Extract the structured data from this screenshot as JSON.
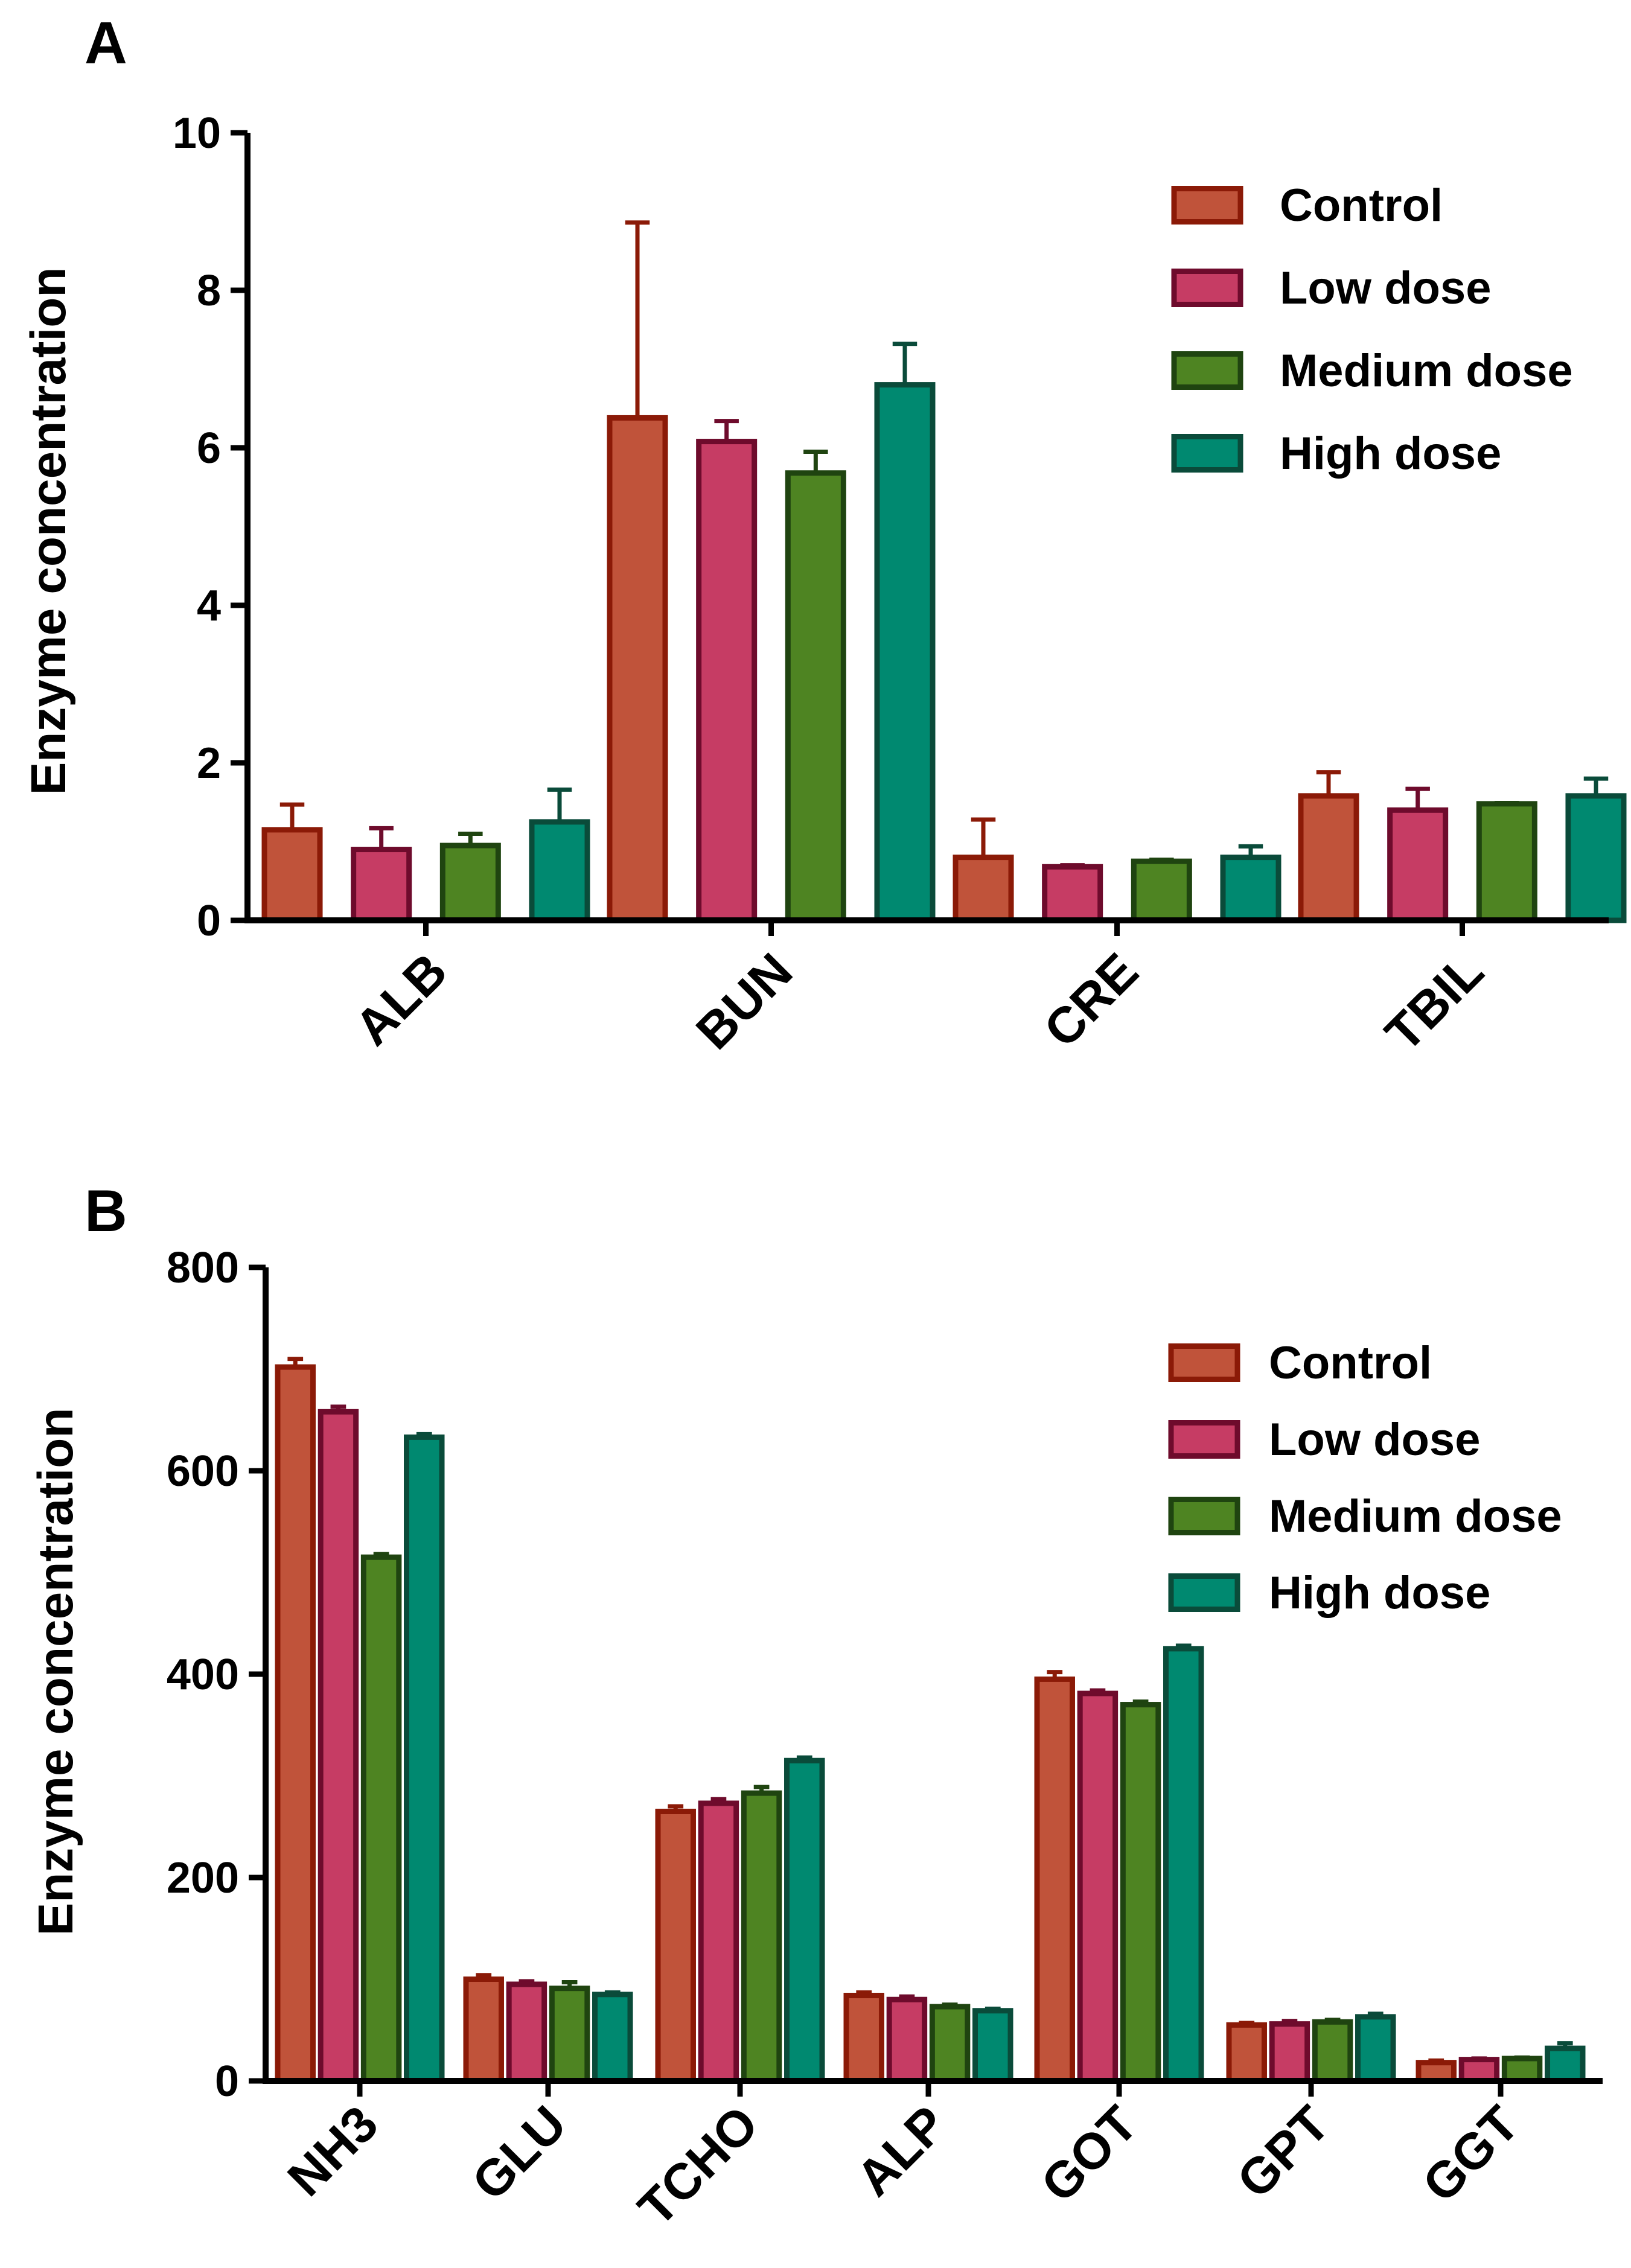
{
  "series_styles": [
    {
      "fill": "#C0533A",
      "stroke": "#8B1A07"
    },
    {
      "fill": "#C63C64",
      "stroke": "#6E0B2C"
    },
    {
      "fill": "#4E8422",
      "stroke": "#1F4410"
    },
    {
      "fill": "#008970",
      "stroke": "#0A4B3A"
    }
  ],
  "chart_data": [
    {
      "type": "bar",
      "panel": "A",
      "ylabel": "Enzyme concentration",
      "ylim": [
        0,
        10
      ],
      "yticks": [
        0,
        2,
        4,
        6,
        8,
        10
      ],
      "ytick_labels": [
        "0",
        "2",
        "4",
        "6",
        "8",
        "10"
      ],
      "categories": [
        "ALB",
        "BUN",
        "CRE",
        "TBIL"
      ],
      "legend": [
        "Control",
        "Low dose",
        "Medium dose",
        "High dose"
      ],
      "legend_position": "top-right",
      "series": [
        {
          "name": "Control",
          "values": [
            1.15,
            6.38,
            0.8,
            1.58
          ],
          "errors": [
            0.32,
            2.48,
            0.48,
            0.3
          ]
        },
        {
          "name": "Low dose",
          "values": [
            0.9,
            6.08,
            0.68,
            1.4
          ],
          "errors": [
            0.27,
            0.26,
            0.02,
            0.27
          ]
        },
        {
          "name": "Medium dose",
          "values": [
            0.95,
            5.68,
            0.75,
            1.48
          ],
          "errors": [
            0.15,
            0.27,
            0.02,
            0.01
          ]
        },
        {
          "name": "High dose",
          "values": [
            1.25,
            6.8,
            0.8,
            1.58
          ],
          "errors": [
            0.41,
            0.52,
            0.14,
            0.22
          ]
        }
      ]
    },
    {
      "type": "bar",
      "panel": "B",
      "ylabel": "Enzyme concentration",
      "ylim": [
        0,
        800
      ],
      "yticks": [
        0,
        200,
        400,
        600,
        800
      ],
      "ytick_labels": [
        "0",
        "200",
        "400",
        "600",
        "800"
      ],
      "categories": [
        "NH3",
        "GLU",
        "TCHO",
        "ALP",
        "GOT",
        "GPT",
        "GGT"
      ],
      "legend": [
        "Control",
        "Low dose",
        "Medium dose",
        "High dose"
      ],
      "legend_position": "top-right",
      "series": [
        {
          "name": "Control",
          "values": [
            702,
            100,
            265,
            84,
            395,
            55,
            18
          ],
          "errors": [
            8,
            4,
            5,
            3,
            7,
            2,
            2
          ]
        },
        {
          "name": "Low dose",
          "values": [
            658,
            95,
            273,
            80,
            381,
            56,
            21
          ],
          "errors": [
            5,
            3,
            4,
            3,
            3,
            3,
            1
          ]
        },
        {
          "name": "Medium dose",
          "values": [
            515,
            91,
            283,
            73,
            370,
            58,
            22
          ],
          "errors": [
            3,
            6,
            6,
            2,
            3,
            2,
            1
          ]
        },
        {
          "name": "High dose",
          "values": [
            633,
            85,
            315,
            69,
            425,
            63,
            32
          ],
          "errors": [
            3,
            2,
            3,
            2,
            3,
            3,
            5
          ]
        }
      ]
    }
  ]
}
